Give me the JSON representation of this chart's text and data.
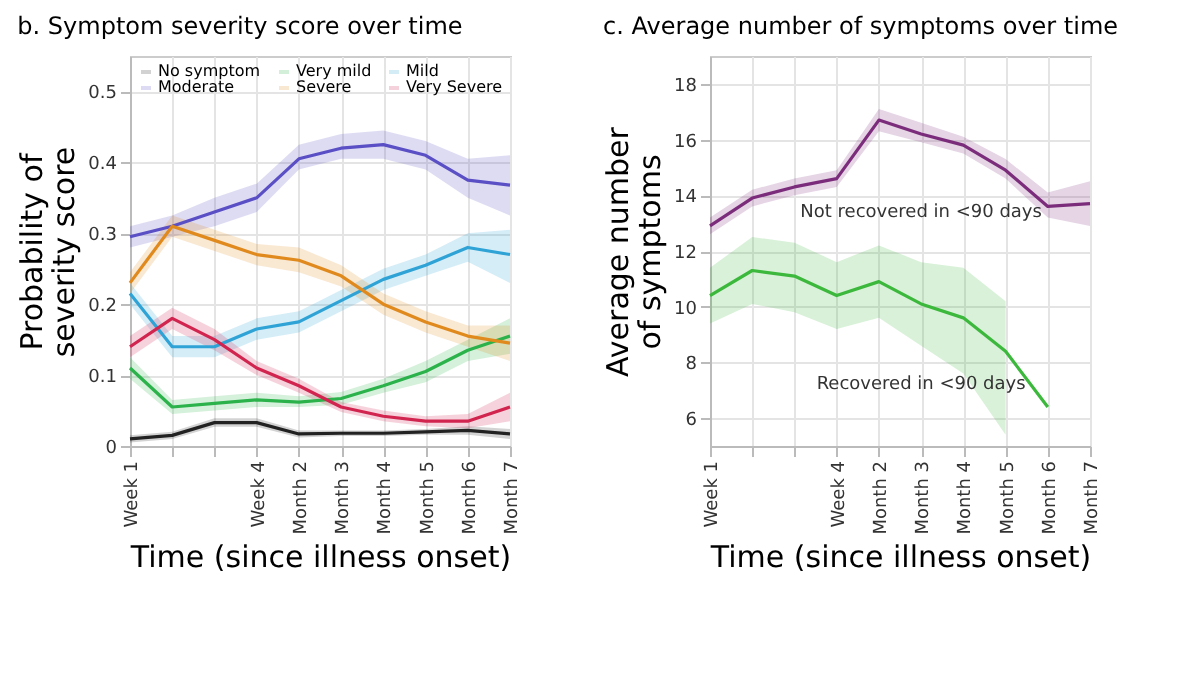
{
  "chart_data": [
    {
      "type": "line",
      "title": "b. Symptom severity score over time",
      "xlabel": "Time (since illness onset)",
      "ylabel": "Probability of severity score",
      "categories": [
        "Week 1",
        null,
        null,
        "Week 4",
        "Month 2",
        "Month 3",
        "Month 4",
        "Month 5",
        "Month 6",
        "Month 7"
      ],
      "ylim": [
        0,
        0.55
      ],
      "yticks": [
        0,
        0.1,
        0.2,
        0.3,
        0.4,
        0.5
      ],
      "grid": true,
      "legend": "top left",
      "series": [
        {
          "name": "No symptom",
          "color": "#222222",
          "values": [
            0.01,
            0.015,
            0.033,
            0.033,
            0.017,
            0.018,
            0.018,
            0.02,
            0.022,
            0.017
          ],
          "lower": [
            0.005,
            0.01,
            0.027,
            0.027,
            0.012,
            0.014,
            0.014,
            0.016,
            0.016,
            0.01
          ],
          "upper": [
            0.015,
            0.02,
            0.039,
            0.039,
            0.022,
            0.022,
            0.022,
            0.024,
            0.028,
            0.024
          ]
        },
        {
          "name": "Very mild",
          "color": "#2bb24a",
          "values": [
            0.11,
            0.055,
            0.06,
            0.065,
            0.062,
            0.067,
            0.085,
            0.105,
            0.135,
            0.155
          ],
          "lower": [
            0.095,
            0.045,
            0.05,
            0.055,
            0.055,
            0.058,
            0.075,
            0.09,
            0.12,
            0.13
          ],
          "upper": [
            0.125,
            0.065,
            0.07,
            0.075,
            0.07,
            0.076,
            0.095,
            0.12,
            0.15,
            0.18
          ]
        },
        {
          "name": "Mild",
          "color": "#2fa3d6",
          "values": [
            0.215,
            0.14,
            0.14,
            0.165,
            0.175,
            0.205,
            0.235,
            0.255,
            0.28,
            0.27
          ],
          "lower": [
            0.2,
            0.125,
            0.125,
            0.15,
            0.16,
            0.19,
            0.22,
            0.24,
            0.26,
            0.23
          ],
          "upper": [
            0.23,
            0.155,
            0.155,
            0.18,
            0.19,
            0.22,
            0.25,
            0.27,
            0.3,
            0.305
          ]
        },
        {
          "name": "Moderate",
          "color": "#5a4fc4",
          "values": [
            0.295,
            0.31,
            0.33,
            0.35,
            0.405,
            0.42,
            0.425,
            0.41,
            0.375,
            0.368
          ],
          "lower": [
            0.28,
            0.295,
            0.31,
            0.33,
            0.39,
            0.405,
            0.405,
            0.39,
            0.35,
            0.325
          ],
          "upper": [
            0.31,
            0.325,
            0.35,
            0.37,
            0.425,
            0.44,
            0.445,
            0.43,
            0.405,
            0.41
          ]
        },
        {
          "name": "Severe",
          "color": "#e08a1e",
          "values": [
            0.23,
            0.31,
            0.29,
            0.27,
            0.262,
            0.24,
            0.2,
            0.175,
            0.155,
            0.145
          ],
          "lower": [
            0.215,
            0.295,
            0.275,
            0.255,
            0.245,
            0.225,
            0.185,
            0.16,
            0.14,
            0.12
          ],
          "upper": [
            0.245,
            0.325,
            0.305,
            0.285,
            0.28,
            0.255,
            0.215,
            0.19,
            0.17,
            0.17
          ]
        },
        {
          "name": "Very Severe",
          "color": "#d1254f",
          "values": [
            0.14,
            0.18,
            0.15,
            0.11,
            0.085,
            0.055,
            0.042,
            0.035,
            0.035,
            0.055
          ],
          "lower": [
            0.125,
            0.165,
            0.135,
            0.1,
            0.075,
            0.048,
            0.035,
            0.028,
            0.025,
            0.035
          ],
          "upper": [
            0.155,
            0.195,
            0.165,
            0.12,
            0.095,
            0.062,
            0.05,
            0.042,
            0.045,
            0.075
          ]
        }
      ]
    },
    {
      "type": "line",
      "title": "c. Average number of symptoms over time",
      "xlabel": "Time (since illness onset)",
      "ylabel": "Average number of symptoms",
      "categories": [
        "Week 1",
        null,
        null,
        "Week 4",
        "Month 2",
        "Month 3",
        "Month 4",
        "Month 5",
        "Month 6",
        "Month 7"
      ],
      "ylim": [
        5,
        19
      ],
      "yticks": [
        6,
        8,
        10,
        12,
        14,
        16,
        18
      ],
      "grid": true,
      "series": [
        {
          "name": "Not recovered in <90 days",
          "color": "#7b2d7b",
          "values": [
            12.9,
            13.9,
            14.3,
            14.6,
            16.7,
            16.2,
            15.8,
            14.9,
            13.6,
            13.7
          ],
          "lower": [
            12.6,
            13.6,
            14.0,
            14.3,
            16.3,
            15.9,
            15.5,
            14.6,
            13.2,
            12.9
          ],
          "upper": [
            13.2,
            14.2,
            14.6,
            14.9,
            17.1,
            16.6,
            16.1,
            15.3,
            14.1,
            14.5
          ]
        },
        {
          "name": "Recovered in <90 days",
          "color": "#3cb83c",
          "values": [
            10.4,
            11.3,
            11.1,
            10.4,
            10.9,
            10.1,
            9.6,
            8.4,
            6.4,
            null
          ],
          "lower": [
            9.4,
            10.1,
            9.8,
            9.2,
            9.6,
            8.6,
            7.6,
            5.4,
            null,
            null
          ],
          "upper": [
            11.4,
            12.5,
            12.3,
            11.6,
            12.2,
            11.6,
            11.4,
            10.2,
            null,
            null
          ]
        }
      ]
    }
  ]
}
